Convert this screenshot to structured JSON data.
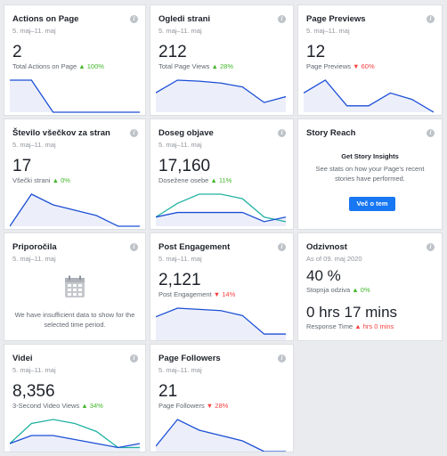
{
  "cards": {
    "actions": {
      "title": "Actions on Page",
      "date": "5. maj–11. maj",
      "value": "2",
      "sub_label": "Total Actions on Page",
      "change": "▲ 100%"
    },
    "ogledi": {
      "title": "Ogledi strani",
      "date": "5. maj–11. maj",
      "value": "212",
      "sub_label": "Total Page Views",
      "change": "▲ 28%"
    },
    "previews": {
      "title": "Page Previews",
      "date": "5. maj–11. maj",
      "value": "12",
      "sub_label": "Page Previews",
      "change": "▼ 60%"
    },
    "vseckov": {
      "title": "Število všečkov za stran",
      "date": "5. maj–11. maj",
      "value": "17",
      "sub_label": "Všečki strani",
      "change": "▲ 0%"
    },
    "doseg": {
      "title": "Doseg objave",
      "date": "5. maj–11. maj",
      "value": "17,160",
      "sub_label": "Dosežene osebe",
      "change": "▲ 11%"
    },
    "story": {
      "title": "Story Reach",
      "heading": "Get Story Insights",
      "message": "See stats on how your Page's recent stories have performed.",
      "button": "Več o tem"
    },
    "priporocila": {
      "title": "Priporočila",
      "date": "5. maj–11. maj",
      "message": "We have insufficient data to show for the selected time period."
    },
    "engagement": {
      "title": "Post Engagement",
      "date": "5. maj–11. maj",
      "value": "2,121",
      "sub_label": "Post Engagement",
      "change": "▼ 14%"
    },
    "odzivnost": {
      "title": "Odzivnost",
      "date": "As of 09. maj 2020",
      "rate": "40 %",
      "rate_label": "Stopnja odziva",
      "rate_change": "▲ 0%",
      "time": "0 hrs 17 mins",
      "time_label": "Response Time",
      "time_change": "▲ hrs 0 mins"
    },
    "videi": {
      "title": "Videi",
      "date": "5. maj–11. maj",
      "value": "8,356",
      "sub_label": "3-Second Video Views",
      "change": "▲ 34%"
    },
    "followers": {
      "title": "Page Followers",
      "date": "5. maj–11. maj",
      "value": "21",
      "sub_label": "Page Followers",
      "change": "▼ 28%"
    }
  },
  "info_glyph": "i",
  "icons": {
    "info": "info-icon",
    "calendar": "calendar-icon"
  },
  "colors": {
    "line_primary": "#1c4fd6",
    "line_secondary": "#20b2a2",
    "fill": "#eceffa",
    "up": "#42b72a",
    "down": "#fa3e3e",
    "button": "#1877f2"
  },
  "sparklines": {
    "actions": {
      "primary": [
        1,
        1,
        0,
        0,
        0,
        0,
        0
      ]
    },
    "ogledi": {
      "primary": [
        20,
        33,
        32,
        30,
        26,
        10,
        16
      ]
    },
    "previews": {
      "primary": [
        3,
        5,
        1,
        1,
        3,
        2,
        0
      ]
    },
    "vseckov": {
      "primary": [
        0,
        6,
        4,
        3,
        2,
        0,
        0
      ]
    },
    "doseg": {
      "primary": [
        2,
        3,
        3,
        3,
        3,
        1,
        2
      ],
      "secondary": [
        2,
        5,
        7,
        7,
        6,
        2,
        1
      ]
    },
    "engagement": {
      "primary": [
        19,
        26,
        25,
        24,
        20,
        5,
        5
      ]
    },
    "videi": {
      "primary": [
        2,
        4,
        4,
        3,
        2,
        1,
        2
      ],
      "secondary": [
        2,
        7,
        8,
        7,
        5,
        1,
        1
      ]
    },
    "followers": {
      "primary": [
        1,
        6,
        4,
        3,
        2,
        0,
        0
      ]
    }
  }
}
